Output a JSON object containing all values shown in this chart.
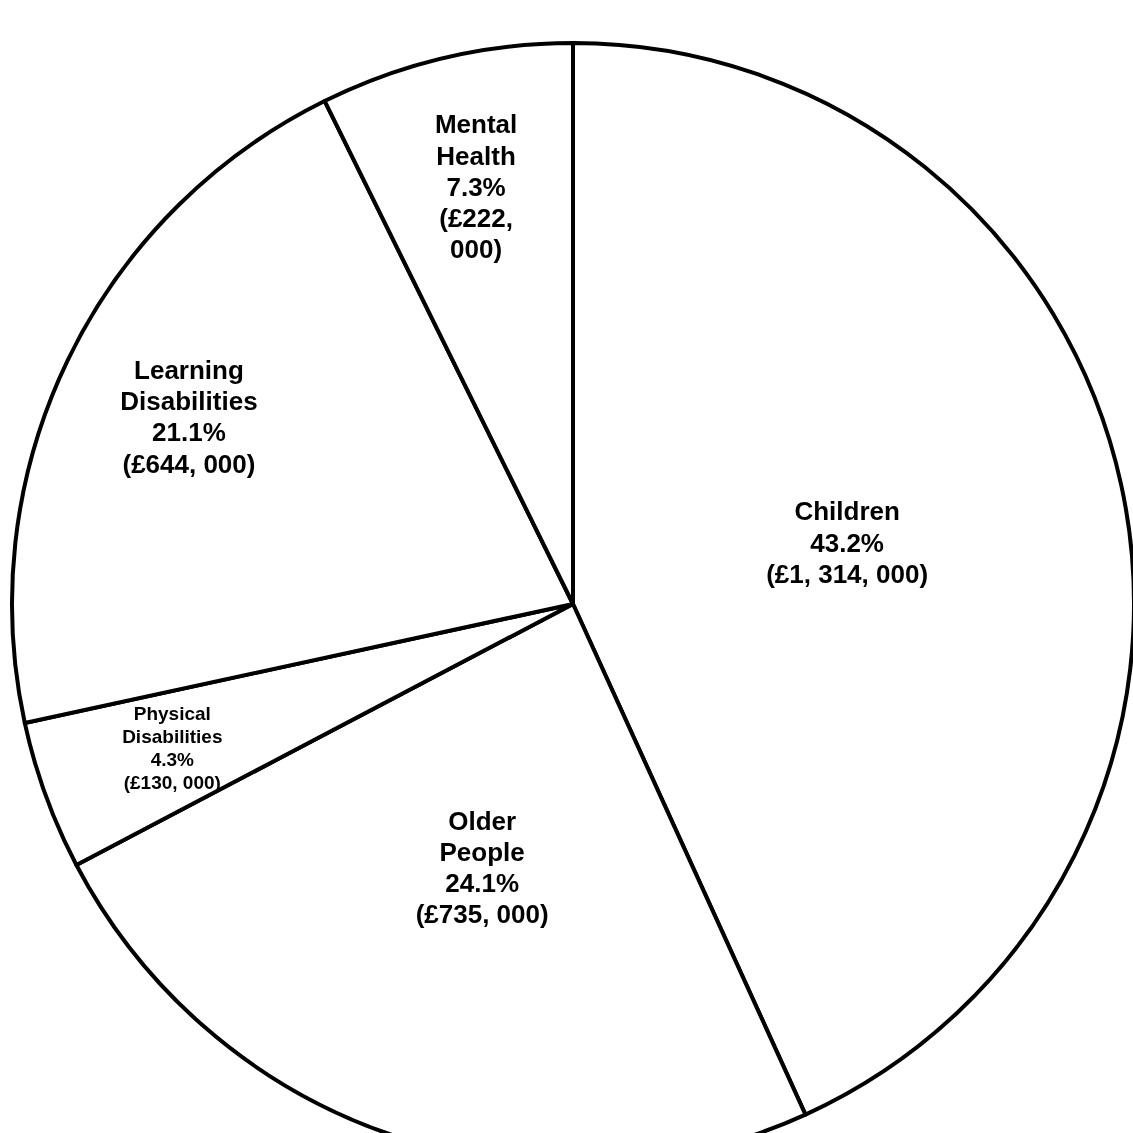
{
  "chart_data": {
    "type": "pie",
    "categories": [
      "Children",
      "Older People",
      "Physical Disabilities",
      "Learning Disabilities",
      "Mental Health"
    ],
    "values": [
      43.2,
      24.1,
      4.3,
      21.1,
      7.3
    ],
    "value_labels": [
      "43.2% (£1, 314, 000)",
      "24.1% (£735, 000)",
      "4.3% (£130, 000)",
      "21.1% (£644, 000)",
      "7.3% (£222, 000)"
    ],
    "colors": [
      "#ffffff",
      "#ffffff",
      "#ffffff",
      "#ffffff",
      "#ffffff"
    ]
  }
}
